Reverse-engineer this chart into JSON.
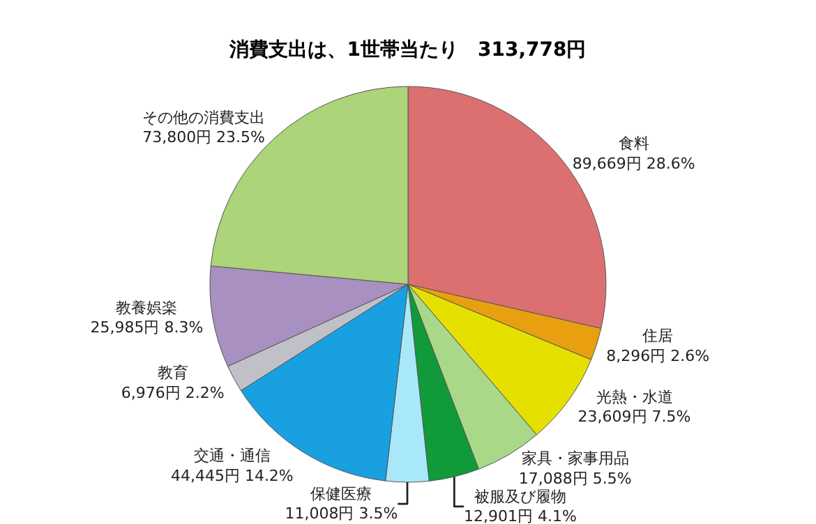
{
  "chart_data": {
    "type": "pie",
    "title": "消費支出は、1世帯当たり　313,778円",
    "categories": [
      "食料",
      "住居",
      "光熱・水道",
      "家具・家事用品",
      "被服及び履物",
      "保健医療",
      "交通・通信",
      "教育",
      "教養娯楽",
      "その他の消費支出"
    ],
    "values": [
      89669,
      8296,
      23609,
      17088,
      12901,
      11008,
      44445,
      6976,
      25985,
      73800
    ],
    "value_labels": [
      "89,669円 28.6%",
      "8,296円 2.6%",
      "23,609円 7.5%",
      "17,088円 5.5%",
      "12,901円 4.1%",
      "11,008円 3.5%",
      "44,445円 14.2%",
      "6,976円 2.2%",
      "25,985円 8.3%",
      "73,800円 23.5%"
    ],
    "colors": [
      "#dc7070",
      "#e8a010",
      "#e6e000",
      "#a8d888",
      "#109a3a",
      "#a8e8f8",
      "#18a0e0",
      "#c0c0c8",
      "#a890c0",
      "#acd478"
    ],
    "legend": false
  }
}
